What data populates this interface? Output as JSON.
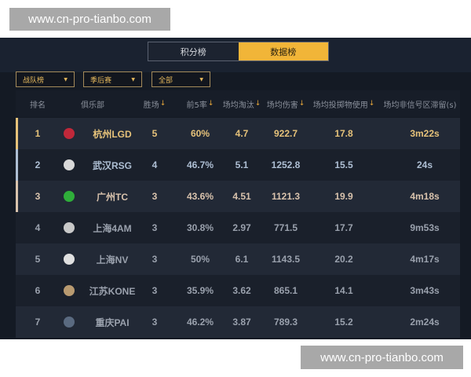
{
  "watermark": "www.cn-pro-tianbo.com",
  "tabs": [
    {
      "label": "积分榜",
      "active": false
    },
    {
      "label": "数据榜",
      "active": true
    }
  ],
  "filters": [
    {
      "value": "战队榜"
    },
    {
      "value": "季后赛"
    },
    {
      "value": "全部"
    }
  ],
  "headers": [
    "排名",
    "俱乐部",
    "胜场",
    "前5率",
    "场均淘汰",
    "场均伤害",
    "场均投掷物使用",
    "场均非信号区滞留(s)"
  ],
  "sort_icon": "↓",
  "dropdown_icon": "▼",
  "colors": {
    "accent": "#f1b538",
    "first": "#e6c27a",
    "second": "#aebfd4",
    "third": "#d9c3ad",
    "other": "#9aa1ad"
  },
  "rows": [
    {
      "rank": "1",
      "team": "杭州LGD",
      "wins": "5",
      "top5": "60%",
      "elim": "4.7",
      "dmg": "922.7",
      "throw": "17.8",
      "stay": "3m22s",
      "logo": "lgd-logo",
      "logo_color": "#c0283a"
    },
    {
      "rank": "2",
      "team": "武汉RSG",
      "wins": "4",
      "top5": "46.7%",
      "elim": "5.1",
      "dmg": "1252.8",
      "throw": "15.5",
      "stay": "24s",
      "logo": "rsg-logo",
      "logo_color": "#d8d8d8"
    },
    {
      "rank": "3",
      "team": "广州TC",
      "wins": "3",
      "top5": "43.6%",
      "elim": "4.51",
      "dmg": "1121.3",
      "throw": "19.9",
      "stay": "4m18s",
      "logo": "tc-logo",
      "logo_color": "#2fae3a"
    },
    {
      "rank": "4",
      "team": "上海4AM",
      "wins": "3",
      "top5": "30.8%",
      "elim": "2.97",
      "dmg": "771.5",
      "throw": "17.7",
      "stay": "9m53s",
      "logo": "4am-logo",
      "logo_color": "#c8c8c8"
    },
    {
      "rank": "5",
      "team": "上海NV",
      "wins": "3",
      "top5": "50%",
      "elim": "6.1",
      "dmg": "1143.5",
      "throw": "20.2",
      "stay": "4m17s",
      "logo": "nv-logo",
      "logo_color": "#e0e0e0"
    },
    {
      "rank": "6",
      "team": "江苏KONE",
      "wins": "3",
      "top5": "35.9%",
      "elim": "3.62",
      "dmg": "865.1",
      "throw": "14.1",
      "stay": "3m43s",
      "logo": "kone-logo",
      "logo_color": "#b89a70"
    },
    {
      "rank": "7",
      "team": "重庆PAI",
      "wins": "3",
      "top5": "46.2%",
      "elim": "3.87",
      "dmg": "789.3",
      "throw": "15.2",
      "stay": "2m24s",
      "logo": "pai-logo",
      "logo_color": "#5a6a80"
    }
  ]
}
